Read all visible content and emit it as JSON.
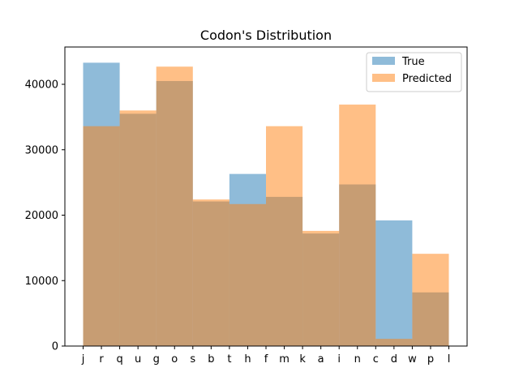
{
  "chart_data": {
    "type": "bar",
    "title": "Codon's Distribution",
    "xlabel": "",
    "ylabel": "",
    "categories": [
      "j",
      "r",
      "q",
      "u",
      "g",
      "o",
      "s",
      "b",
      "t",
      "h",
      "f",
      "m",
      "k",
      "a",
      "i",
      "n",
      "c",
      "d",
      "w",
      "p",
      "l"
    ],
    "bins": [
      {
        "x_start": "j",
        "x_end": "q"
      },
      {
        "x_start": "q",
        "x_end": "g"
      },
      {
        "x_start": "g",
        "x_end": "s"
      },
      {
        "x_start": "s",
        "x_end": "t"
      },
      {
        "x_start": "t",
        "x_end": "f"
      },
      {
        "x_start": "f",
        "x_end": "k"
      },
      {
        "x_start": "k",
        "x_end": "i"
      },
      {
        "x_start": "i",
        "x_end": "c"
      },
      {
        "x_start": "c",
        "x_end": "w"
      },
      {
        "x_start": "w",
        "x_end": "l"
      }
    ],
    "series": [
      {
        "name": "True",
        "color": "#1f77b4",
        "alpha": 0.5,
        "values": [
          43300,
          35500,
          40500,
          22100,
          26300,
          22800,
          17200,
          24700,
          19200,
          8200
        ]
      },
      {
        "name": "Predicted",
        "color": "#ff7f0e",
        "alpha": 0.5,
        "values": [
          33600,
          36000,
          42700,
          22400,
          21700,
          33600,
          17600,
          36900,
          1100,
          14100
        ]
      }
    ],
    "ylim": [
      0,
      45700
    ],
    "yticks": [
      0,
      10000,
      20000,
      30000,
      40000
    ],
    "ytick_labels": [
      "0",
      "10000",
      "20000",
      "30000",
      "40000"
    ],
    "legend_position": "top-right",
    "grid": false
  }
}
